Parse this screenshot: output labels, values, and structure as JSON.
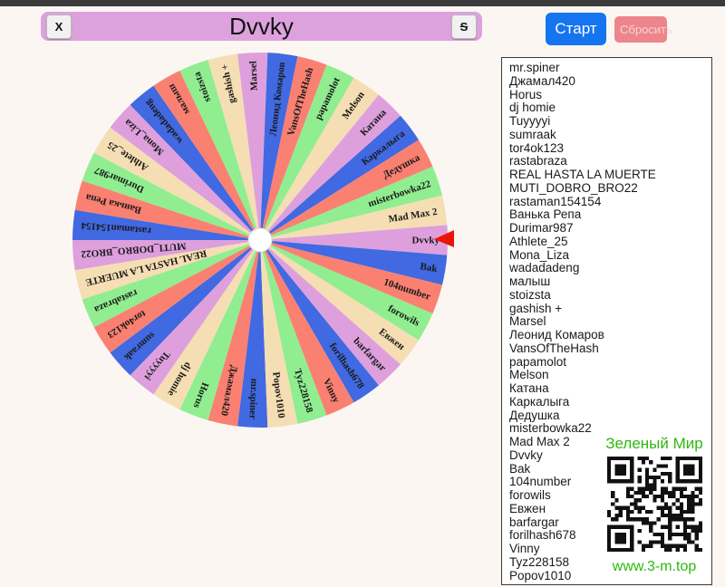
{
  "page": {
    "top_strip_color": "#3b3b3b",
    "background": "#fcf6f2"
  },
  "header": {
    "title": "Dvvky",
    "close_label": "X",
    "s_label": "S",
    "bar_color": "#dda2dd"
  },
  "controls": {
    "start_label": "Старт",
    "reset_label": "Сбросить",
    "start_color": "#1574f0",
    "reset_color": "#ec858c"
  },
  "wheel": {
    "selected_name": "Dvvky",
    "pointer_color": "#ea1508",
    "hub_color": "#ffffff",
    "palette": [
      "#4169e1",
      "#fa8072",
      "#90ee90",
      "#f5deb3",
      "#dda0dd"
    ]
  },
  "participants": {
    "names": [
      "mr.spiner",
      "Джамал420",
      "Horus",
      "dj homie",
      "Tuyyyyi",
      "sumraak",
      "tor4ok123",
      "rastabraza",
      "REAL HASTA LA MUERTE",
      "MUTI_DOBRO_BRO22",
      "rastaman154154",
      "Ванька Репа",
      "Durimar987",
      "Athlete_25",
      "Mona_Liza",
      "wadadadeng",
      "малыш",
      "stoizsta",
      "gashish +",
      "Marsel",
      "Леонид Комаров",
      "VansOfTheHash",
      "papamolot",
      "Melson",
      "Катана",
      "Каркалыга",
      "Дедушка",
      "misterbowka22",
      "Mad Max 2",
      "Dvvky",
      "Bak",
      "104number",
      "forowils",
      "Евжен",
      "barfargar",
      "forilhash678",
      "Vinny",
      "Tyz228158",
      "Popov1010"
    ]
  },
  "qr": {
    "title": "Зеленый Мир",
    "url": "www.3-m.top",
    "accent": "#2eb80e"
  }
}
